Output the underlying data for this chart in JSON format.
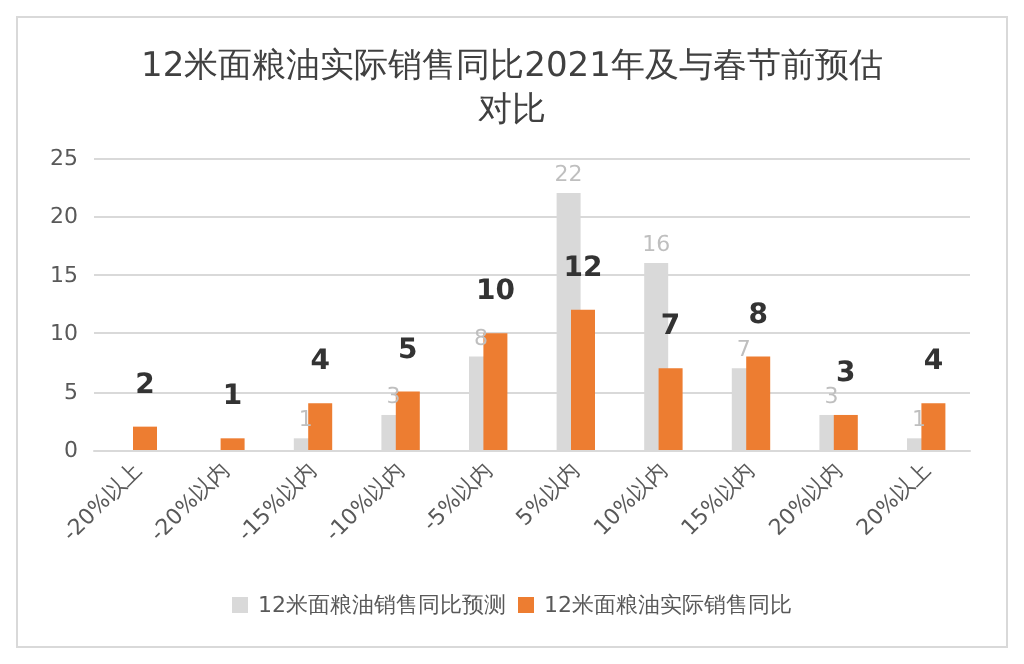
{
  "chart_data": {
    "type": "bar",
    "title": "12米面粮油实际销售同比2021年及与春节前预估对比",
    "categories": [
      "-20%以上",
      "-20%以内",
      "-15%以内",
      "-10%以内",
      "-5%以内",
      "5%以内",
      "10%以内",
      "15%以内",
      "20%以内",
      "20%以上"
    ],
    "series": [
      {
        "name": "12米面粮油销售同比预测",
        "color": "#d9d9d9",
        "values": [
          null,
          null,
          1,
          3,
          8,
          22,
          16,
          7,
          3,
          1
        ]
      },
      {
        "name": "12米面粮油实际销售同比",
        "color": "#ed7d31",
        "values": [
          2,
          1,
          4,
          5,
          10,
          12,
          7,
          8,
          3,
          4
        ]
      }
    ],
    "ylim": [
      0,
      25
    ],
    "yticks": [
      0,
      5,
      10,
      15,
      20,
      25
    ],
    "grid": "y",
    "legend": "bottom",
    "data_labels": true
  }
}
